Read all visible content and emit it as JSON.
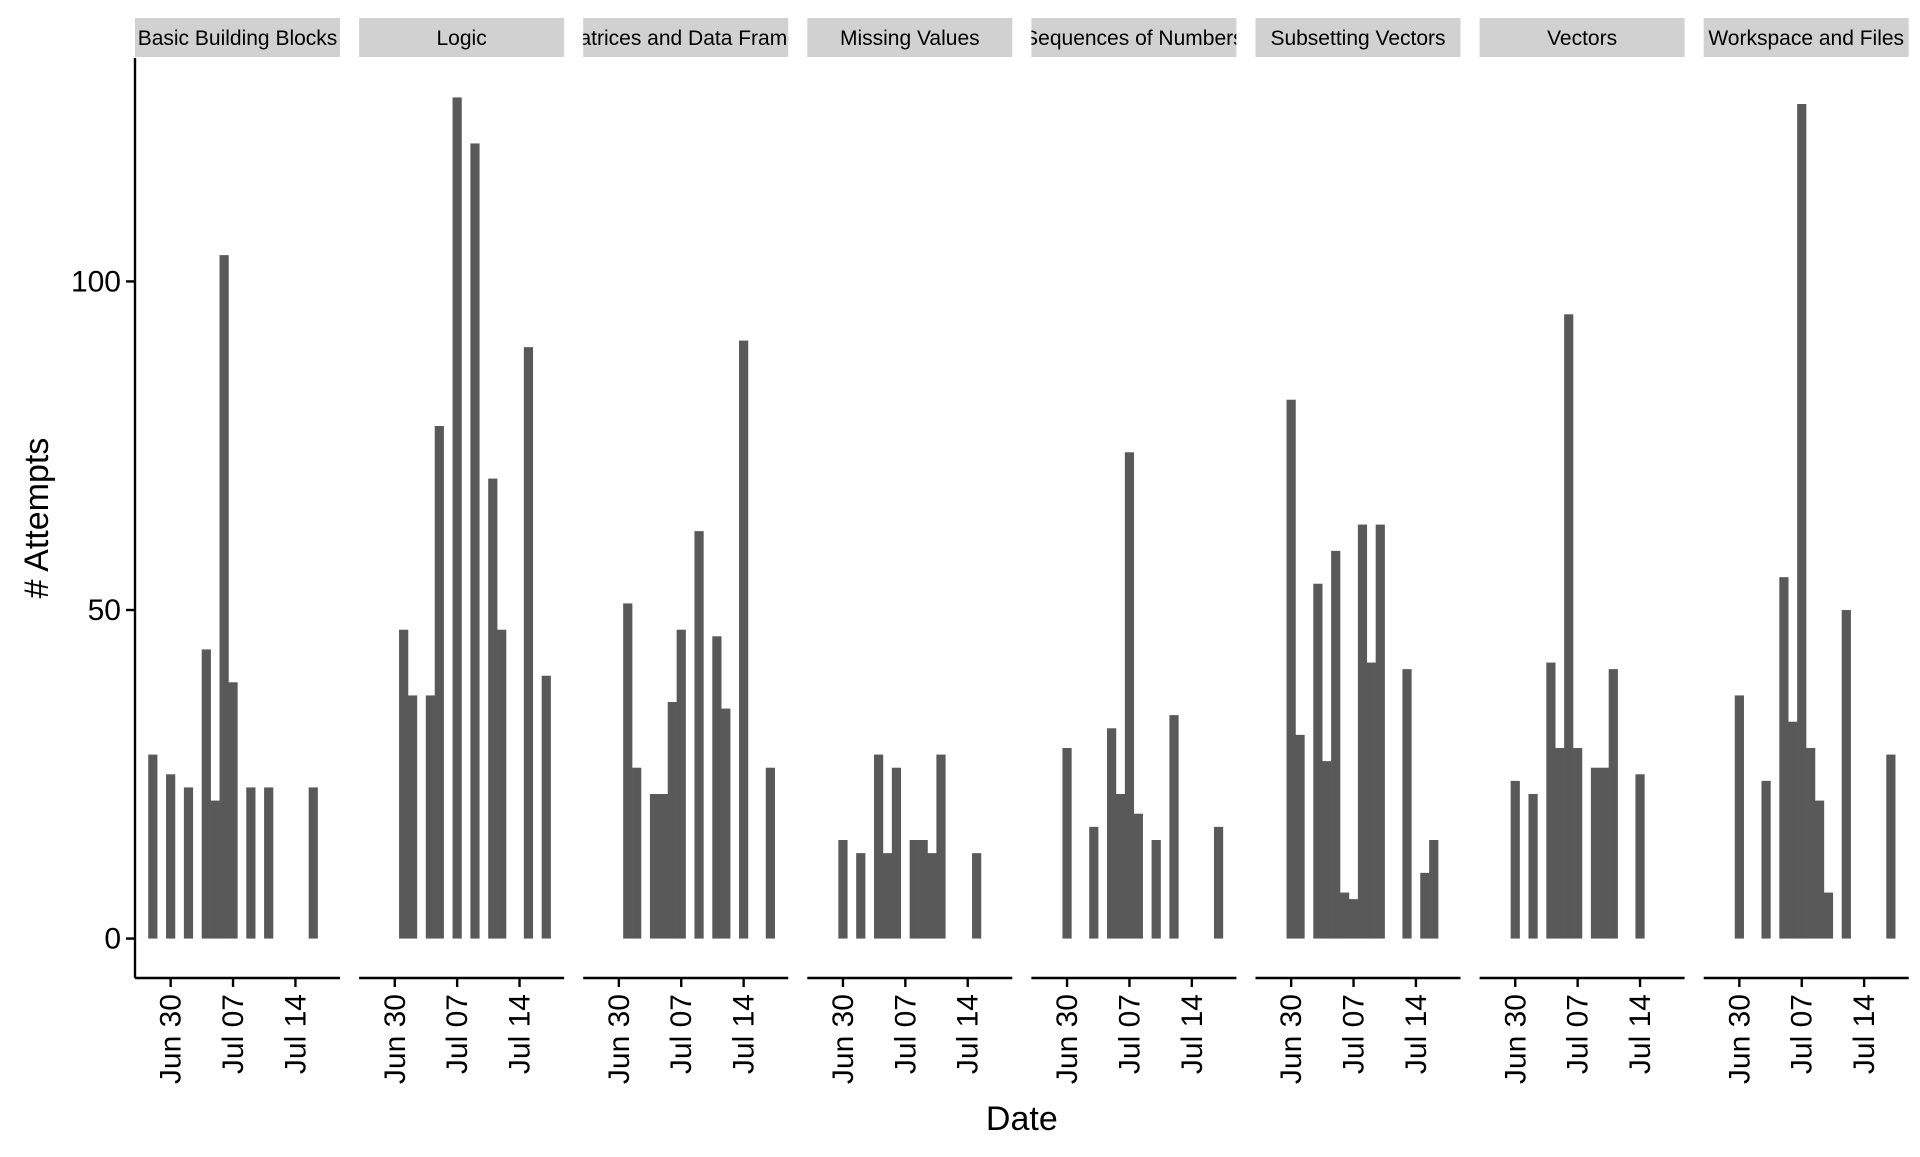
{
  "chart_data": {
    "type": "bar",
    "facet_by": "lesson",
    "xlabel": "Date",
    "ylabel": "# Attempts",
    "ylim": [
      -6,
      134
    ],
    "xlim": [
      "2017-06-26",
      "2017-07-19"
    ],
    "y_ticks": [
      0,
      50,
      100
    ],
    "x_ticks": [
      {
        "date": "2017-06-30",
        "label": "Jun 30"
      },
      {
        "date": "2017-07-07",
        "label": "Jul 07"
      },
      {
        "date": "2017-07-14",
        "label": "Jul 14"
      }
    ],
    "grid": false,
    "legend": "none",
    "bar_color": "#595959",
    "strip_color": "#d1d1d1",
    "panels": [
      {
        "title": "Basic Building Blocks",
        "bars": [
          {
            "date": "2017-06-28",
            "value": 28
          },
          {
            "date": "2017-06-30",
            "value": 25
          },
          {
            "date": "2017-07-02",
            "value": 23
          },
          {
            "date": "2017-07-04",
            "value": 44
          },
          {
            "date": "2017-07-05",
            "value": 21
          },
          {
            "date": "2017-07-06",
            "value": 104
          },
          {
            "date": "2017-07-07",
            "value": 39
          },
          {
            "date": "2017-07-09",
            "value": 23
          },
          {
            "date": "2017-07-11",
            "value": 23
          },
          {
            "date": "2017-07-16",
            "value": 23
          }
        ]
      },
      {
        "title": "Logic",
        "bars": [
          {
            "date": "2017-07-01",
            "value": 47
          },
          {
            "date": "2017-07-02",
            "value": 37
          },
          {
            "date": "2017-07-04",
            "value": 37
          },
          {
            "date": "2017-07-05",
            "value": 78
          },
          {
            "date": "2017-07-07",
            "value": 128
          },
          {
            "date": "2017-07-09",
            "value": 121
          },
          {
            "date": "2017-07-11",
            "value": 70
          },
          {
            "date": "2017-07-12",
            "value": 47
          },
          {
            "date": "2017-07-15",
            "value": 90
          },
          {
            "date": "2017-07-17",
            "value": 40
          }
        ]
      },
      {
        "title": "Matrices and Data Frames",
        "bars": [
          {
            "date": "2017-07-01",
            "value": 51
          },
          {
            "date": "2017-07-02",
            "value": 26
          },
          {
            "date": "2017-07-04",
            "value": 22
          },
          {
            "date": "2017-07-05",
            "value": 22
          },
          {
            "date": "2017-07-06",
            "value": 36
          },
          {
            "date": "2017-07-07",
            "value": 47
          },
          {
            "date": "2017-07-09",
            "value": 62
          },
          {
            "date": "2017-07-11",
            "value": 46
          },
          {
            "date": "2017-07-12",
            "value": 35
          },
          {
            "date": "2017-07-14",
            "value": 91
          },
          {
            "date": "2017-07-17",
            "value": 26
          }
        ]
      },
      {
        "title": "Missing Values",
        "bars": [
          {
            "date": "2017-06-30",
            "value": 15
          },
          {
            "date": "2017-07-02",
            "value": 13
          },
          {
            "date": "2017-07-04",
            "value": 28
          },
          {
            "date": "2017-07-05",
            "value": 13
          },
          {
            "date": "2017-07-06",
            "value": 26
          },
          {
            "date": "2017-07-08",
            "value": 15
          },
          {
            "date": "2017-07-09",
            "value": 15
          },
          {
            "date": "2017-07-10",
            "value": 13
          },
          {
            "date": "2017-07-11",
            "value": 28
          },
          {
            "date": "2017-07-15",
            "value": 13
          }
        ]
      },
      {
        "title": "Sequences of Numbers",
        "bars": [
          {
            "date": "2017-06-30",
            "value": 29
          },
          {
            "date": "2017-07-03",
            "value": 17
          },
          {
            "date": "2017-07-05",
            "value": 32
          },
          {
            "date": "2017-07-06",
            "value": 22
          },
          {
            "date": "2017-07-07",
            "value": 74
          },
          {
            "date": "2017-07-08",
            "value": 19
          },
          {
            "date": "2017-07-10",
            "value": 15
          },
          {
            "date": "2017-07-12",
            "value": 34
          },
          {
            "date": "2017-07-17",
            "value": 17
          }
        ]
      },
      {
        "title": "Subsetting Vectors",
        "bars": [
          {
            "date": "2017-06-30",
            "value": 82
          },
          {
            "date": "2017-07-01",
            "value": 31
          },
          {
            "date": "2017-07-03",
            "value": 54
          },
          {
            "date": "2017-07-04",
            "value": 27
          },
          {
            "date": "2017-07-05",
            "value": 59
          },
          {
            "date": "2017-07-06",
            "value": 7
          },
          {
            "date": "2017-07-07",
            "value": 6
          },
          {
            "date": "2017-07-08",
            "value": 63
          },
          {
            "date": "2017-07-09",
            "value": 42
          },
          {
            "date": "2017-07-10",
            "value": 63
          },
          {
            "date": "2017-07-13",
            "value": 41
          },
          {
            "date": "2017-07-15",
            "value": 10
          },
          {
            "date": "2017-07-16",
            "value": 15
          }
        ]
      },
      {
        "title": "Vectors",
        "bars": [
          {
            "date": "2017-06-30",
            "value": 24
          },
          {
            "date": "2017-07-02",
            "value": 22
          },
          {
            "date": "2017-07-04",
            "value": 42
          },
          {
            "date": "2017-07-05",
            "value": 29
          },
          {
            "date": "2017-07-06",
            "value": 95
          },
          {
            "date": "2017-07-07",
            "value": 29
          },
          {
            "date": "2017-07-09",
            "value": 26
          },
          {
            "date": "2017-07-10",
            "value": 26
          },
          {
            "date": "2017-07-11",
            "value": 41
          },
          {
            "date": "2017-07-14",
            "value": 25
          }
        ]
      },
      {
        "title": "Workspace and Files",
        "bars": [
          {
            "date": "2017-06-30",
            "value": 37
          },
          {
            "date": "2017-07-03",
            "value": 24
          },
          {
            "date": "2017-07-05",
            "value": 55
          },
          {
            "date": "2017-07-06",
            "value": 33
          },
          {
            "date": "2017-07-07",
            "value": 127
          },
          {
            "date": "2017-07-08",
            "value": 29
          },
          {
            "date": "2017-07-09",
            "value": 21
          },
          {
            "date": "2017-07-10",
            "value": 7
          },
          {
            "date": "2017-07-12",
            "value": 50
          },
          {
            "date": "2017-07-17",
            "value": 28
          }
        ]
      }
    ]
  }
}
